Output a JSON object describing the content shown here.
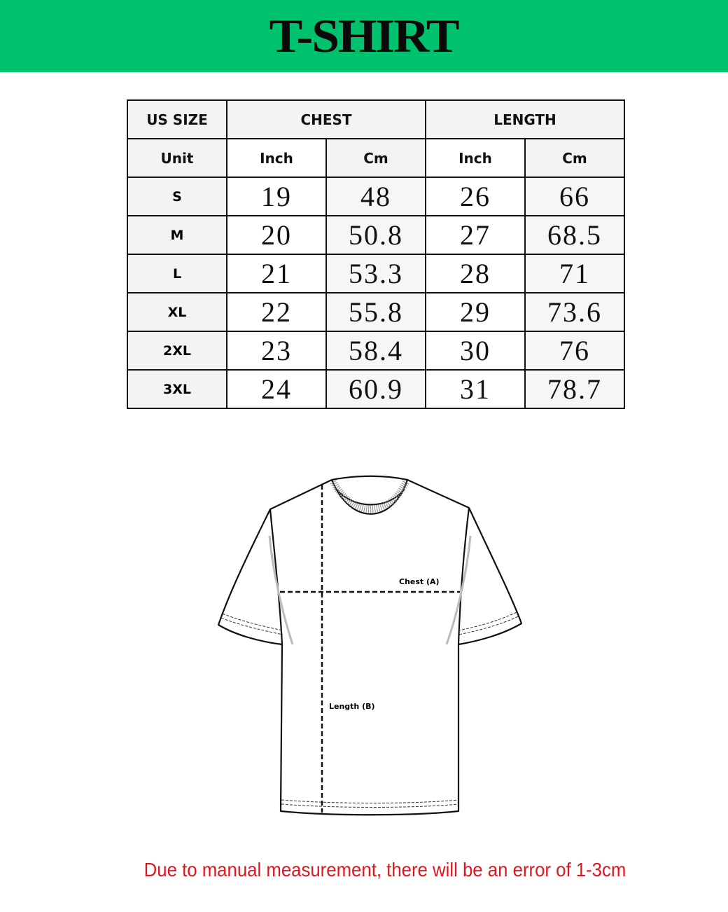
{
  "header": {
    "title": "T-SHIRT",
    "background_color": "#00c16e"
  },
  "size_table": {
    "group_headers": [
      "US SIZE",
      "CHEST",
      "LENGTH"
    ],
    "unit_row": [
      "Unit",
      "Inch",
      "Cm",
      "Inch",
      "Cm"
    ],
    "rows": [
      {
        "size": "S",
        "chest_inch": "19",
        "chest_cm": "48",
        "length_inch": "26",
        "length_cm": "66"
      },
      {
        "size": "M",
        "chest_inch": "20",
        "chest_cm": "50.8",
        "length_inch": "27",
        "length_cm": "68.5"
      },
      {
        "size": "L",
        "chest_inch": "21",
        "chest_cm": "53.3",
        "length_inch": "28",
        "length_cm": "71"
      },
      {
        "size": "XL",
        "chest_inch": "22",
        "chest_cm": "55.8",
        "length_inch": "29",
        "length_cm": "73.6"
      },
      {
        "size": "2XL",
        "chest_inch": "23",
        "chest_cm": "58.4",
        "length_inch": "30",
        "length_cm": "76"
      },
      {
        "size": "3XL",
        "chest_inch": "24",
        "chest_cm": "60.9",
        "length_inch": "31",
        "length_cm": "78.7"
      }
    ]
  },
  "diagram": {
    "chest_label": "Chest (A)",
    "length_label": "Length (B)"
  },
  "footer": {
    "note": "Due to manual measurement, there will be an error of 1-3cm",
    "note_color": "#e0161e"
  }
}
